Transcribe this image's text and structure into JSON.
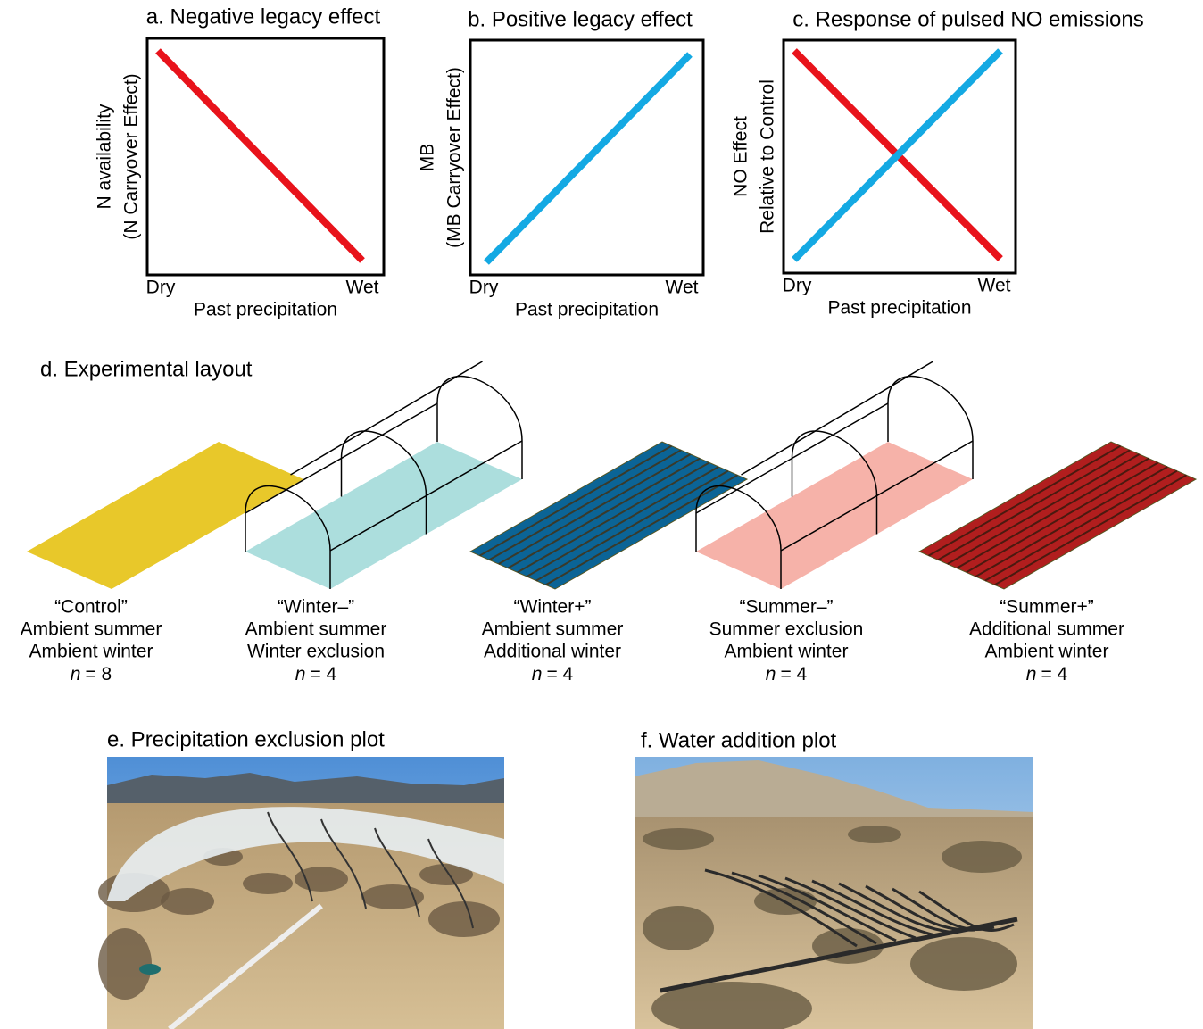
{
  "panels": [
    {
      "title": "a. Negative legacy effect",
      "y_label": [
        "N availability",
        "(N Carryover Effect)"
      ],
      "x_ticks": [
        "Dry",
        "Wet"
      ],
      "x_label": "Past precipitation"
    },
    {
      "title": "b. Positive legacy effect",
      "y_label": [
        "MB",
        "(MB Carryover Effect)"
      ],
      "x_ticks": [
        "Dry",
        "Wet"
      ],
      "x_label": "Past precipitation"
    },
    {
      "title": "c. Response of pulsed NO emissions",
      "y_label": [
        "NO Effect",
        "Relative to Control"
      ],
      "x_ticks": [
        "Dry",
        "Wet"
      ],
      "x_label": "Past precipitation"
    }
  ],
  "layout": {
    "title": "d. Experimental layout",
    "treatments": [
      {
        "name": "“Control”",
        "lines": [
          "Ambient summer",
          "Ambient winter"
        ],
        "n_symbol": "n",
        "n_value": "= 8"
      },
      {
        "name": "“Winter–”",
        "lines": [
          "Ambient summer",
          "Winter exclusion"
        ],
        "n_symbol": "n",
        "n_value": "= 4"
      },
      {
        "name": "“Winter+”",
        "lines": [
          "Ambient summer",
          "Additional winter"
        ],
        "n_symbol": "n",
        "n_value": "= 4"
      },
      {
        "name": "“Summer–”",
        "lines": [
          "Summer exclusion",
          "Ambient winter"
        ],
        "n_symbol": "n",
        "n_value": "= 4"
      },
      {
        "name": "“Summer+”",
        "lines": [
          "Additional summer",
          "Ambient winter"
        ],
        "n_symbol": "n",
        "n_value": "= 4"
      }
    ]
  },
  "photos": [
    {
      "title": "e. Precipitation exclusion plot"
    },
    {
      "title": "f. Water addition plot"
    }
  ]
}
